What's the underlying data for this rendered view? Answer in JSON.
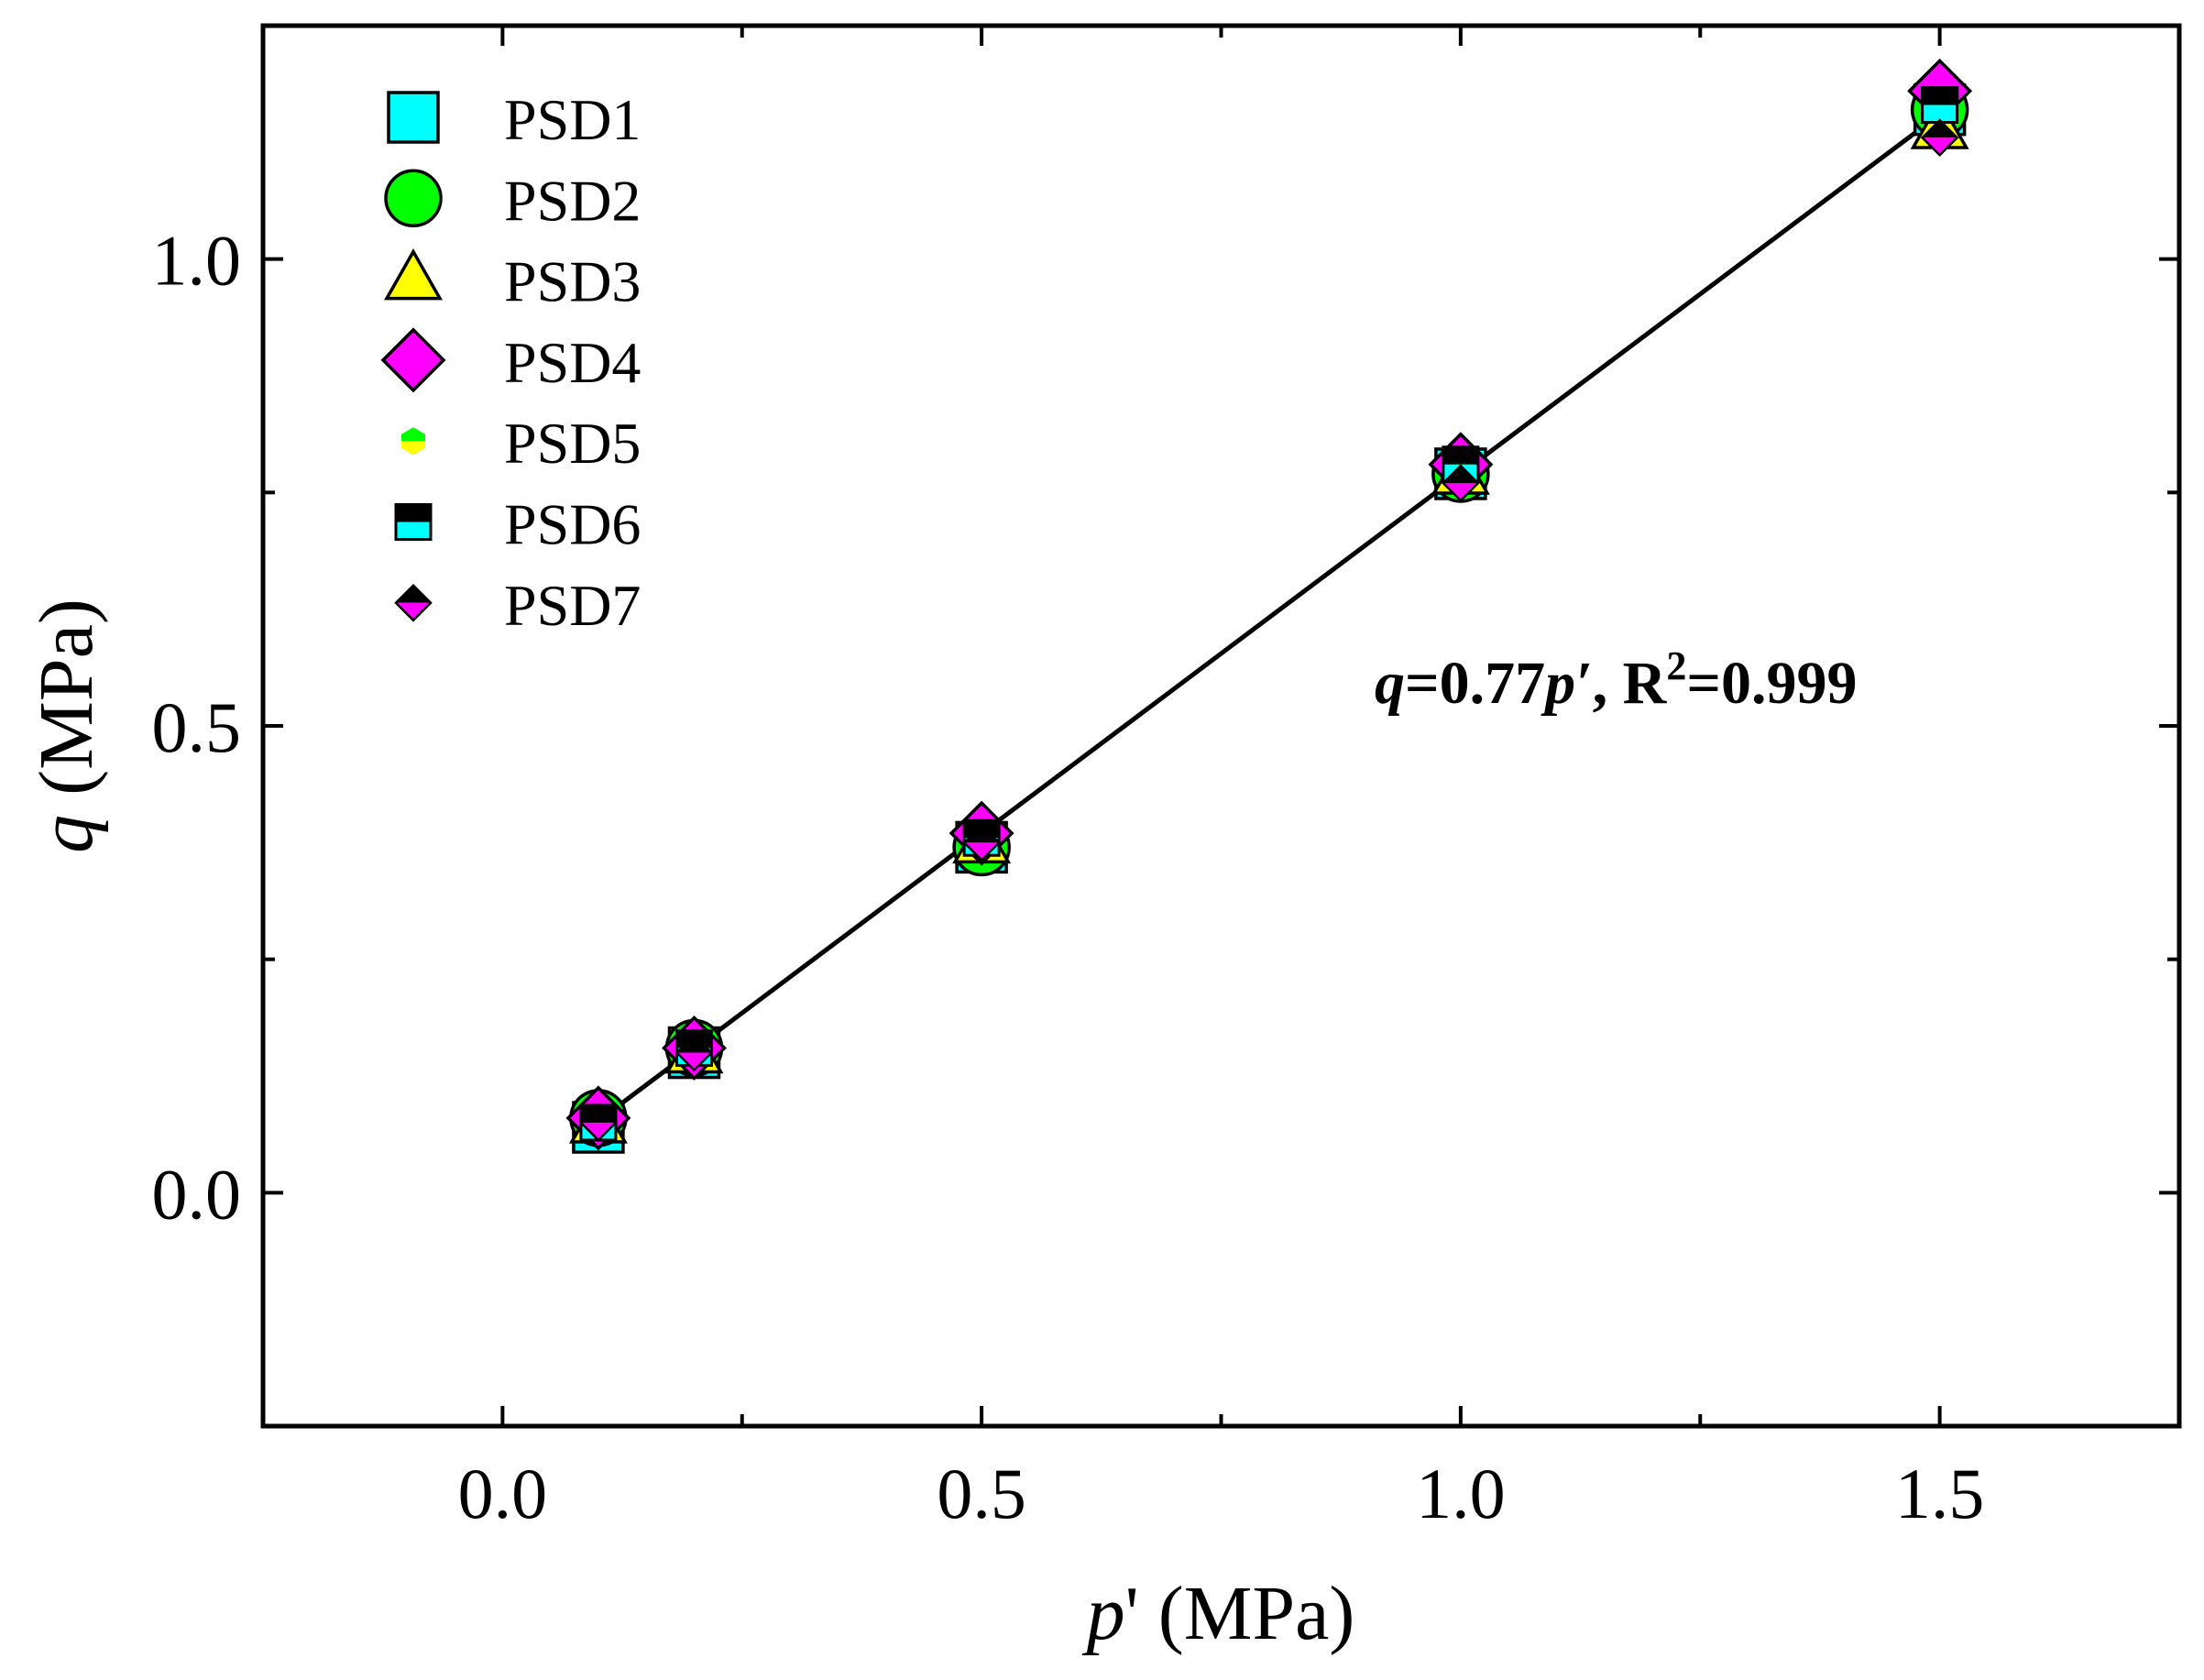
{
  "chart_data": {
    "type": "scatter",
    "title": "",
    "xlabel_italic": "p",
    "xlabel_rest": "' (MPa)",
    "ylabel_italic": "q",
    "ylabel_rest": " (MPa)",
    "xlim": [
      -0.25,
      1.75
    ],
    "ylim": [
      -0.25,
      1.25
    ],
    "xticks": [
      0.0,
      0.5,
      1.0,
      1.5
    ],
    "xtick_labels": [
      "0.0",
      "0.5",
      "1.0",
      "1.5"
    ],
    "xminor": [
      0.25,
      0.75,
      1.25
    ],
    "yticks": [
      0.0,
      0.5,
      1.0
    ],
    "ytick_labels": [
      "0.0",
      "0.5",
      "1.0"
    ],
    "yminor": [
      0.25,
      0.75
    ],
    "legend_position": "top-left",
    "series": [
      {
        "name": "PSD1",
        "marker": "square",
        "color": "#00ffff",
        "x": [
          0.1,
          0.2,
          0.5,
          1.0,
          1.5
        ],
        "y": [
          0.07,
          0.15,
          0.37,
          0.77,
          1.16
        ]
      },
      {
        "name": "PSD2",
        "marker": "circle",
        "color": "#00ff00",
        "x": [
          0.1,
          0.2,
          0.5,
          1.0,
          1.5
        ],
        "y": [
          0.08,
          0.155,
          0.37,
          0.77,
          1.16
        ]
      },
      {
        "name": "PSD3",
        "marker": "triangle",
        "color": "#ffff00",
        "x": [
          0.1,
          0.2,
          0.5,
          1.0,
          1.5
        ],
        "y": [
          0.075,
          0.15,
          0.375,
          0.77,
          1.14
        ]
      },
      {
        "name": "PSD4",
        "marker": "diamond",
        "color": "#ff00ff",
        "x": [
          0.1,
          0.2,
          0.5,
          1.0,
          1.5
        ],
        "y": [
          0.08,
          0.155,
          0.385,
          0.78,
          1.18
        ]
      },
      {
        "name": "PSD5",
        "marker": "hexagon-half",
        "color": "#00ff00",
        "color2": "#ffff00",
        "x": [
          0.1,
          0.2,
          0.5,
          1.0,
          1.5
        ],
        "y": [
          0.075,
          0.15,
          0.375,
          0.775,
          1.16
        ]
      },
      {
        "name": "PSD6",
        "marker": "square-half",
        "color": "#000000",
        "color2": "#00ffff",
        "x": [
          0.1,
          0.2,
          0.5,
          1.0,
          1.5
        ],
        "y": [
          0.075,
          0.155,
          0.38,
          0.78,
          1.165
        ]
      },
      {
        "name": "PSD7",
        "marker": "diamond-half",
        "color": "#000000",
        "color2": "#ff00ff",
        "x": [
          0.1,
          0.2,
          0.5,
          1.0,
          1.5
        ],
        "y": [
          0.075,
          0.15,
          0.375,
          0.76,
          1.13
        ]
      }
    ],
    "fit": {
      "slope": 0.77,
      "x_range": [
        0.1,
        1.5
      ],
      "color": "#000000"
    },
    "annotation": {
      "q": "q",
      "eq_mid": "=0.77",
      "p": "p",
      "prime": "′",
      "sep": ", ",
      "r": "R",
      "sup": "2",
      "r2": "=0.999"
    }
  }
}
